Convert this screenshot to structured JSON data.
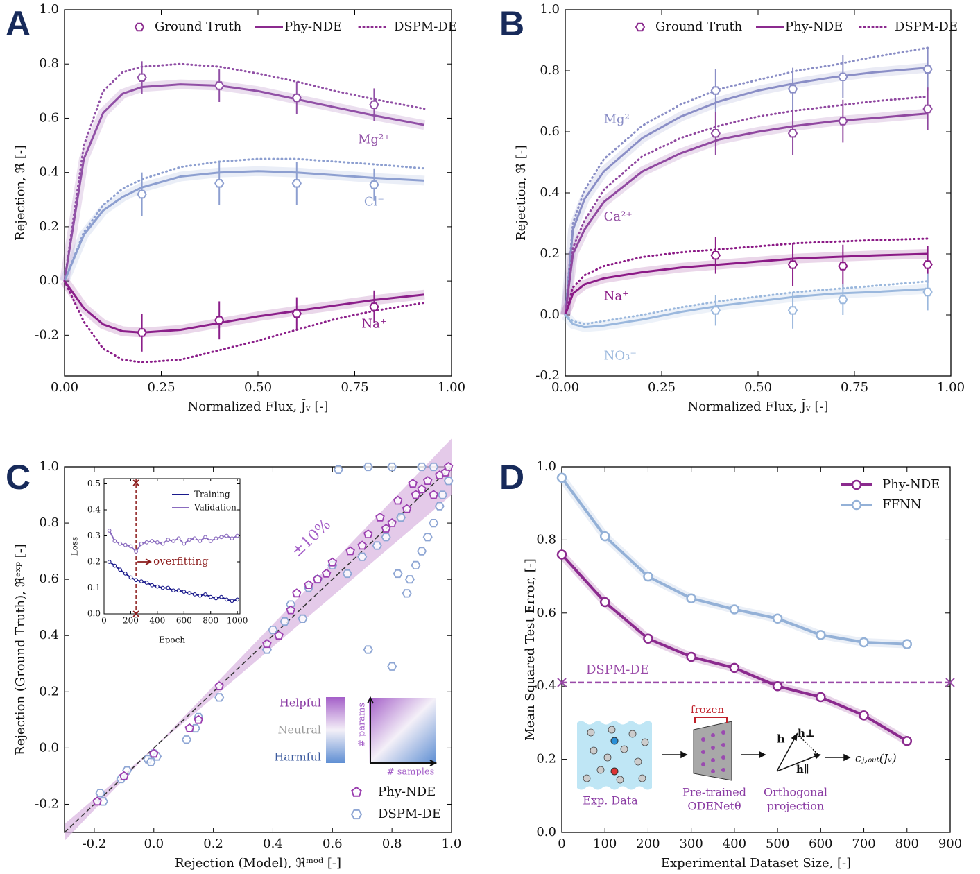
{
  "chart_data": [
    {
      "type": "line",
      "panel": "A",
      "xlabel": "Normalized Flux, J̄ᵥ [-]",
      "ylabel": "Rejection, ℜ [-]",
      "xlim": [
        0,
        1
      ],
      "ylim": [
        -0.35,
        1.0
      ],
      "xticks": [
        {
          "value": 0,
          "label": "0.00"
        },
        0.25,
        {
          "value": 0.5,
          "label": "0.50"
        },
        0.75,
        {
          "value": 1,
          "label": "1.00"
        }
      ],
      "yticks": [
        -0.2,
        {
          "value": 0,
          "label": "0.0"
        },
        0.2,
        0.4,
        0.6,
        0.8,
        {
          "value": 1,
          "label": "1.0"
        }
      ],
      "legend": [
        "Ground Truth",
        "Phy-NDE",
        "DSPM-DE"
      ],
      "legend_color": "#8b2a8e",
      "curve_x": [
        0,
        0.05,
        0.1,
        0.15,
        0.2,
        0.3,
        0.4,
        0.5,
        0.6,
        0.7,
        0.8,
        0.93
      ],
      "gt_x": [
        0.2,
        0.4,
        0.6,
        0.8
      ],
      "ions": [
        {
          "label": "Mg²⁺",
          "color": "#9150a6",
          "phy_nde": [
            0,
            0.45,
            0.62,
            0.69,
            0.715,
            0.725,
            0.72,
            0.7,
            0.67,
            0.64,
            0.61,
            0.575
          ],
          "dspm_de": [
            0,
            0.5,
            0.7,
            0.77,
            0.79,
            0.8,
            0.79,
            0.765,
            0.735,
            0.7,
            0.67,
            0.635
          ],
          "gt": [
            0.75,
            0.72,
            0.675,
            0.65
          ],
          "gt_err": [
            0.06,
            0.06,
            0.06,
            0.06
          ]
        },
        {
          "label": "Cl⁻",
          "color": "#8d9fd0",
          "phy_nde": [
            0,
            0.17,
            0.26,
            0.31,
            0.345,
            0.385,
            0.4,
            0.405,
            0.4,
            0.39,
            0.38,
            0.37
          ],
          "dspm_de": [
            0,
            0.18,
            0.28,
            0.34,
            0.375,
            0.42,
            0.44,
            0.45,
            0.45,
            0.44,
            0.43,
            0.415
          ],
          "gt": [
            0.32,
            0.36,
            0.36,
            0.355
          ],
          "gt_err": [
            0.08,
            0.08,
            0.08,
            0.06
          ]
        },
        {
          "label": "Na⁺",
          "color": "#8b1f8a",
          "phy_nde": [
            0,
            -0.1,
            -0.16,
            -0.185,
            -0.19,
            -0.18,
            -0.155,
            -0.13,
            -0.11,
            -0.09,
            -0.07,
            -0.05
          ],
          "dspm_de": [
            0,
            -0.15,
            -0.25,
            -0.29,
            -0.3,
            -0.29,
            -0.255,
            -0.22,
            -0.18,
            -0.14,
            -0.11,
            -0.08
          ],
          "gt": [
            -0.19,
            -0.145,
            -0.12,
            -0.095
          ],
          "gt_err": [
            0.07,
            0.07,
            0.06,
            0.06
          ]
        }
      ]
    },
    {
      "type": "line",
      "panel": "B",
      "xlabel": "Normalized Flux, J̄ᵥ [-]",
      "ylabel": "Rejection, ℜ [-]",
      "xlim": [
        0,
        1
      ],
      "ylim": [
        -0.2,
        1.0
      ],
      "xticks": [
        {
          "value": 0,
          "label": "0.00"
        },
        0.25,
        {
          "value": 0.5,
          "label": "0.50"
        },
        0.75,
        {
          "value": 1,
          "label": "1.00"
        }
      ],
      "yticks": [
        -0.2,
        {
          "value": 0,
          "label": "0.0"
        },
        0.2,
        0.4,
        0.6,
        0.8,
        {
          "value": 1,
          "label": "1.0"
        }
      ],
      "legend": [
        "Ground Truth",
        "Phy-NDE",
        "DSPM-DE"
      ],
      "legend_color": "#8b2a8e",
      "curve_x": [
        0,
        0.02,
        0.05,
        0.1,
        0.2,
        0.3,
        0.4,
        0.5,
        0.6,
        0.7,
        0.8,
        0.94
      ],
      "gt_x": [
        0.39,
        0.59,
        0.72,
        0.94
      ],
      "ions": [
        {
          "label": "Mg²⁺",
          "color": "#8a8ec6",
          "phy_nde": [
            0,
            0.28,
            0.38,
            0.47,
            0.58,
            0.65,
            0.7,
            0.735,
            0.76,
            0.78,
            0.795,
            0.81
          ],
          "dspm_de": [
            0,
            0.3,
            0.41,
            0.51,
            0.62,
            0.69,
            0.74,
            0.77,
            0.8,
            0.82,
            0.845,
            0.875
          ],
          "gt": [
            0.735,
            0.74,
            0.78,
            0.805
          ],
          "gt_err": [
            0.07,
            0.07,
            0.07,
            0.07
          ]
        },
        {
          "label": "Ca²⁺",
          "color": "#9048a0",
          "phy_nde": [
            0,
            0.2,
            0.28,
            0.37,
            0.47,
            0.53,
            0.575,
            0.6,
            0.62,
            0.635,
            0.645,
            0.66
          ],
          "dspm_de": [
            0,
            0.22,
            0.31,
            0.41,
            0.52,
            0.58,
            0.62,
            0.65,
            0.67,
            0.685,
            0.7,
            0.715
          ],
          "gt": [
            0.595,
            0.595,
            0.635,
            0.675
          ],
          "gt_err": [
            0.07,
            0.07,
            0.07,
            0.07
          ]
        },
        {
          "label": "Na⁺",
          "color": "#8b1a86",
          "phy_nde": [
            0,
            0.07,
            0.1,
            0.12,
            0.14,
            0.155,
            0.165,
            0.175,
            0.185,
            0.19,
            0.195,
            0.2
          ],
          "dspm_de": [
            0,
            0.09,
            0.13,
            0.16,
            0.19,
            0.205,
            0.215,
            0.225,
            0.235,
            0.24,
            0.245,
            0.25
          ],
          "gt": [
            0.195,
            0.165,
            0.16,
            0.165
          ],
          "gt_err": [
            0.06,
            0.07,
            0.07,
            0.06
          ]
        },
        {
          "label": "NO₃⁻",
          "color": "#9bb8dd",
          "phy_nde": [
            0,
            -0.03,
            -0.04,
            -0.035,
            -0.015,
            0.01,
            0.03,
            0.045,
            0.06,
            0.07,
            0.075,
            0.085
          ],
          "dspm_de": [
            0,
            -0.02,
            -0.03,
            -0.02,
            0.0,
            0.025,
            0.045,
            0.06,
            0.075,
            0.085,
            0.095,
            0.11
          ],
          "gt": [
            0.015,
            0.015,
            0.05,
            0.075
          ],
          "gt_err": [
            0.05,
            0.06,
            0.05,
            0.06
          ]
        }
      ]
    },
    {
      "type": "scatter",
      "panel": "C",
      "xlabel": "Rejection (Model), ℜᵐᵒᵈ [-]",
      "ylabel": "Rejection (Ground Truth), ℜᵉˣᵖ [-]",
      "xlim": [
        -0.3,
        1.0
      ],
      "ylim": [
        -0.3,
        1.0
      ],
      "xticks": [
        -0.2,
        {
          "value": 0,
          "label": "0.0"
        },
        0.2,
        0.4,
        0.6,
        0.8,
        {
          "value": 1,
          "label": "1.0"
        }
      ],
      "yticks": [
        -0.2,
        {
          "value": 0,
          "label": "0.0"
        },
        0.2,
        0.4,
        0.6,
        0.8,
        {
          "value": 1,
          "label": "1.0"
        }
      ],
      "band_percent": 10,
      "band_label": "±10%",
      "band_color": "#d9b3e0",
      "series": [
        {
          "name": "Phy-NDE",
          "color": "#9b3fb0",
          "x": [
            -0.19,
            -0.1,
            0.0,
            0.12,
            0.15,
            0.22,
            0.38,
            0.42,
            0.46,
            0.48,
            0.52,
            0.58,
            0.6,
            0.66,
            0.72,
            0.76,
            0.8,
            0.82,
            0.85,
            0.88,
            0.9,
            0.92,
            0.94,
            0.96,
            0.98,
            0.99,
            0.87,
            0.78,
            0.7,
            0.55
          ],
          "values": [
            -0.19,
            -0.1,
            -0.02,
            0.07,
            0.1,
            0.22,
            0.37,
            0.4,
            0.49,
            0.55,
            0.58,
            0.62,
            0.66,
            0.7,
            0.76,
            0.82,
            0.8,
            0.88,
            0.85,
            0.9,
            0.92,
            0.95,
            0.9,
            0.97,
            0.98,
            1.0,
            0.94,
            0.78,
            0.72,
            0.6
          ]
        },
        {
          "name": "DSPM-DE",
          "color": "#8ea6d4",
          "x": [
            -0.18,
            -0.17,
            -0.11,
            -0.09,
            -0.02,
            -0.01,
            0.0,
            0.01,
            0.11,
            0.14,
            0.15,
            0.22,
            0.38,
            0.4,
            0.44,
            0.46,
            0.5,
            0.52,
            0.55,
            0.6,
            0.62,
            0.72,
            0.8,
            0.72,
            0.8,
            0.82,
            0.85,
            0.86,
            0.88,
            0.9,
            0.92,
            0.94,
            0.96,
            0.97,
            0.99,
            0.9,
            0.94,
            0.7,
            0.75,
            0.83,
            0.65,
            0.78
          ],
          "values": [
            -0.16,
            -0.19,
            -0.11,
            -0.08,
            -0.04,
            -0.05,
            -0.02,
            -0.03,
            0.03,
            0.07,
            0.11,
            0.18,
            0.35,
            0.42,
            0.45,
            0.51,
            0.46,
            0.57,
            0.6,
            0.65,
            0.99,
            0.35,
            0.29,
            1.0,
            1.0,
            0.62,
            0.55,
            0.6,
            0.65,
            0.7,
            0.75,
            0.8,
            0.86,
            0.9,
            0.95,
            1.0,
            1.0,
            0.68,
            0.72,
            0.82,
            0.62,
            0.75
          ]
        }
      ],
      "quality_legend": {
        "labels": [
          "Helpful",
          "Neutral",
          "Harmful"
        ],
        "y_label": "# params",
        "x_label": "# samples"
      },
      "inset": {
        "xlabel": "Epoch",
        "ylabel": "Loss",
        "xlim": [
          0,
          1020
        ],
        "ylim": [
          0,
          0.52
        ],
        "xticks": [
          0,
          200,
          400,
          600,
          800,
          1000
        ],
        "yticks": [
          {
            "value": 0,
            "label": "0.0"
          },
          0.1,
          0.2,
          0.3,
          0.4,
          0.5
        ],
        "x": [
          40,
          80,
          120,
          160,
          200,
          240,
          280,
          320,
          360,
          400,
          440,
          480,
          520,
          560,
          600,
          640,
          680,
          720,
          760,
          800,
          840,
          880,
          920,
          960,
          1000
        ],
        "series": [
          {
            "name": "Training",
            "color": "#1a1a8c",
            "values": [
              0.2,
              0.185,
              0.17,
              0.155,
              0.14,
              0.13,
              0.125,
              0.12,
              0.11,
              0.105,
              0.1,
              0.1,
              0.09,
              0.09,
              0.085,
              0.08,
              0.075,
              0.07,
              0.075,
              0.065,
              0.06,
              0.065,
              0.055,
              0.05,
              0.055
            ]
          },
          {
            "name": "Validation",
            "color": "#8a6bbf",
            "values": [
              0.32,
              0.28,
              0.27,
              0.265,
              0.26,
              0.24,
              0.27,
              0.275,
              0.28,
              0.275,
              0.27,
              0.285,
              0.28,
              0.29,
              0.27,
              0.285,
              0.29,
              0.28,
              0.295,
              0.28,
              0.29,
              0.295,
              0.3,
              0.29,
              0.3
            ]
          }
        ],
        "marker_x": 240,
        "annotation": "overfitting"
      }
    },
    {
      "type": "line",
      "panel": "D",
      "xlabel": "Experimental Dataset Size, [-]",
      "ylabel": "Mean Squared Test Error, [-]",
      "xlim": [
        0,
        900
      ],
      "ylim": [
        0,
        1.0
      ],
      "xticks": [
        0,
        100,
        200,
        300,
        400,
        500,
        600,
        700,
        800,
        900
      ],
      "yticks": [
        {
          "value": 0,
          "label": "0.0"
        },
        0.2,
        0.4,
        0.6,
        0.8,
        {
          "value": 1,
          "label": "1.0"
        }
      ],
      "x": [
        0,
        100,
        200,
        300,
        400,
        500,
        600,
        700,
        800
      ],
      "series": [
        {
          "name": "Phy-NDE",
          "color": "#8b2a8e",
          "values": [
            0.76,
            0.63,
            0.53,
            0.48,
            0.45,
            0.4,
            0.37,
            0.32,
            0.25
          ]
        },
        {
          "name": "FFNN",
          "color": "#94b1d7",
          "values": [
            0.97,
            0.81,
            0.7,
            0.64,
            0.61,
            0.585,
            0.54,
            0.52,
            0.515
          ]
        }
      ],
      "reference": {
        "label": "DSPM-DE",
        "value": 0.41,
        "color": "#9a4aa8"
      },
      "diagram": {
        "frozen": "frozen",
        "exp_data": "Exp. Data",
        "pretrained": "Pre-trained",
        "odenet": "ODENetθ",
        "projection_1": "Orthogonal",
        "projection_2": "projection",
        "h": "h",
        "h_perp": "h⊥",
        "h_par": "h∥",
        "output": "cⱼ,ₒᵤₜ(Jᵥ)"
      }
    }
  ]
}
